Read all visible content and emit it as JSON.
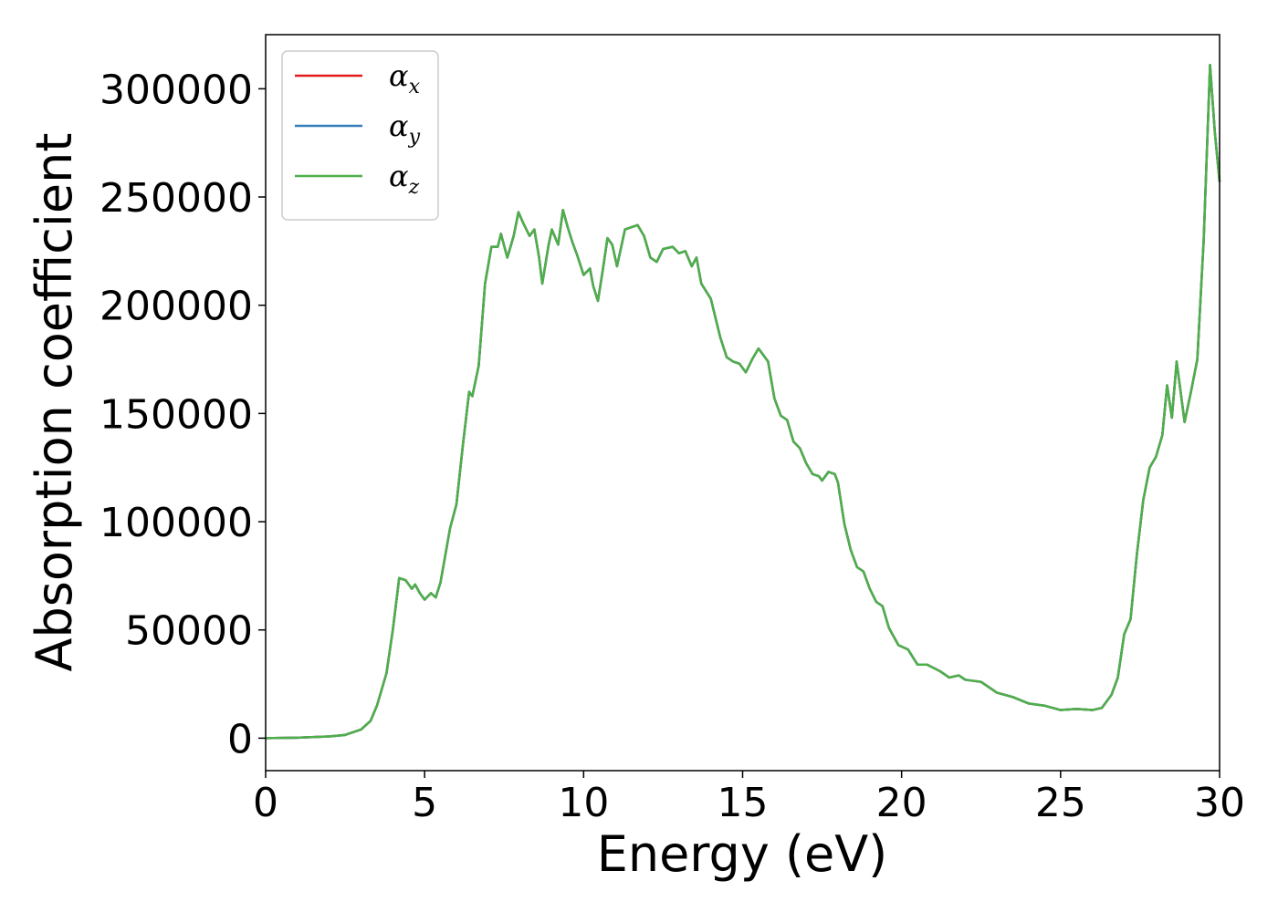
{
  "chart_data": {
    "type": "line",
    "xlabel": "Energy (eV)",
    "ylabel": "Absorption coefficient",
    "xlim": [
      0,
      30
    ],
    "ylim": [
      -15000,
      325000
    ],
    "xticks": [
      0,
      5,
      10,
      15,
      20,
      25,
      30
    ],
    "yticks": [
      0,
      50000,
      100000,
      150000,
      200000,
      250000,
      300000
    ],
    "grid": false,
    "legend": "upper left",
    "x": [
      0,
      1,
      2,
      2.5,
      3.0,
      3.3,
      3.5,
      3.8,
      4.0,
      4.2,
      4.4,
      4.6,
      4.7,
      4.85,
      5.0,
      5.2,
      5.35,
      5.5,
      5.8,
      6.0,
      6.2,
      6.4,
      6.5,
      6.7,
      6.9,
      7.1,
      7.3,
      7.4,
      7.6,
      7.8,
      7.95,
      8.1,
      8.3,
      8.45,
      8.6,
      8.7,
      8.9,
      9.0,
      9.2,
      9.35,
      9.5,
      9.65,
      9.8,
      10.0,
      10.2,
      10.3,
      10.45,
      10.6,
      10.75,
      10.9,
      11.05,
      11.3,
      11.5,
      11.7,
      11.9,
      12.1,
      12.3,
      12.5,
      12.8,
      13.0,
      13.2,
      13.4,
      13.55,
      13.7,
      14.0,
      14.3,
      14.5,
      14.7,
      14.9,
      15.1,
      15.3,
      15.5,
      15.8,
      16.0,
      16.2,
      16.4,
      16.6,
      16.8,
      17.0,
      17.2,
      17.4,
      17.5,
      17.7,
      17.9,
      18.0,
      18.2,
      18.4,
      18.6,
      18.8,
      19.0,
      19.2,
      19.4,
      19.6,
      19.9,
      20.2,
      20.5,
      20.8,
      21.2,
      21.5,
      21.8,
      22.0,
      22.5,
      23.0,
      23.5,
      24.0,
      24.5,
      25.0,
      25.5,
      26.0,
      26.3,
      26.6,
      26.8,
      27.0,
      27.2,
      27.4,
      27.6,
      27.8,
      28.0,
      28.2,
      28.35,
      28.5,
      28.65,
      28.9,
      29.1,
      29.3,
      29.5,
      29.7,
      29.85,
      30.0
    ],
    "series": [
      {
        "name": "αx",
        "color": "#e41a1c",
        "values": [
          0,
          200,
          800,
          1500,
          4000,
          8000,
          15000,
          30000,
          50000,
          74000,
          73000,
          69000,
          71000,
          67000,
          64000,
          67000,
          65000,
          72000,
          97000,
          108000,
          135000,
          160000,
          158000,
          172000,
          210000,
          227000,
          227000,
          233000,
          222000,
          232000,
          243000,
          238000,
          232000,
          235000,
          222000,
          210000,
          228000,
          235000,
          228000,
          244000,
          236000,
          229000,
          223000,
          214000,
          217000,
          209000,
          202000,
          216000,
          231000,
          228000,
          218000,
          235000,
          236000,
          237000,
          232000,
          222000,
          220000,
          226000,
          227000,
          224000,
          225000,
          218000,
          222000,
          210000,
          203000,
          185000,
          176000,
          174000,
          173000,
          169000,
          175000,
          180000,
          174000,
          157000,
          149000,
          147000,
          137000,
          134000,
          127000,
          122000,
          121000,
          119000,
          123000,
          122000,
          118000,
          99000,
          87000,
          79000,
          77000,
          69000,
          63000,
          61000,
          51000,
          43000,
          41000,
          34000,
          34000,
          31000,
          28000,
          29000,
          27000,
          26000,
          21000,
          19000,
          16000,
          15000,
          13000,
          13500,
          13000,
          14000,
          20000,
          28000,
          48000,
          55000,
          85000,
          110000,
          125000,
          130000,
          140000,
          163000,
          148000,
          174000,
          146000,
          160000,
          175000,
          230000,
          311000,
          280000,
          257000
        ]
      },
      {
        "name": "αy",
        "color": "#377eb8",
        "values": [
          0,
          200,
          800,
          1500,
          4000,
          8000,
          15000,
          30000,
          50000,
          74000,
          73000,
          69000,
          71000,
          67000,
          64000,
          67000,
          65000,
          72000,
          97000,
          108000,
          135000,
          160000,
          158000,
          172000,
          210000,
          227000,
          227000,
          233000,
          222000,
          232000,
          243000,
          238000,
          232000,
          235000,
          222000,
          210000,
          228000,
          235000,
          228000,
          244000,
          236000,
          229000,
          223000,
          214000,
          217000,
          209000,
          202000,
          216000,
          231000,
          228000,
          218000,
          235000,
          236000,
          237000,
          232000,
          222000,
          220000,
          226000,
          227000,
          224000,
          225000,
          218000,
          222000,
          210000,
          203000,
          185000,
          176000,
          174000,
          173000,
          169000,
          175000,
          180000,
          174000,
          157000,
          149000,
          147000,
          137000,
          134000,
          127000,
          122000,
          121000,
          119000,
          123000,
          122000,
          118000,
          99000,
          87000,
          79000,
          77000,
          69000,
          63000,
          61000,
          51000,
          43000,
          41000,
          34000,
          34000,
          31000,
          28000,
          29000,
          27000,
          26000,
          21000,
          19000,
          16000,
          15000,
          13000,
          13500,
          13000,
          14000,
          20000,
          28000,
          48000,
          55000,
          85000,
          110000,
          125000,
          130000,
          140000,
          163000,
          148000,
          174000,
          146000,
          160000,
          175000,
          230000,
          311000,
          280000,
          257000
        ]
      },
      {
        "name": "αz",
        "color": "#4daf4a",
        "values": [
          0,
          200,
          800,
          1500,
          4000,
          8000,
          15000,
          30000,
          50000,
          74000,
          73000,
          69000,
          71000,
          67000,
          64000,
          67000,
          65000,
          72000,
          97000,
          108000,
          135000,
          160000,
          158000,
          172000,
          210000,
          227000,
          227000,
          233000,
          222000,
          232000,
          243000,
          238000,
          232000,
          235000,
          222000,
          210000,
          228000,
          235000,
          228000,
          244000,
          236000,
          229000,
          223000,
          214000,
          217000,
          209000,
          202000,
          216000,
          231000,
          228000,
          218000,
          235000,
          236000,
          237000,
          232000,
          222000,
          220000,
          226000,
          227000,
          224000,
          225000,
          218000,
          222000,
          210000,
          203000,
          185000,
          176000,
          174000,
          173000,
          169000,
          175000,
          180000,
          174000,
          157000,
          149000,
          147000,
          137000,
          134000,
          127000,
          122000,
          121000,
          119000,
          123000,
          122000,
          118000,
          99000,
          87000,
          79000,
          77000,
          69000,
          63000,
          61000,
          51000,
          43000,
          41000,
          34000,
          34000,
          31000,
          28000,
          29000,
          27000,
          26000,
          21000,
          19000,
          16000,
          15000,
          13000,
          13500,
          13000,
          14000,
          20000,
          28000,
          48000,
          55000,
          85000,
          110000,
          125000,
          130000,
          140000,
          163000,
          148000,
          174000,
          146000,
          160000,
          175000,
          230000,
          311000,
          280000,
          257000
        ]
      }
    ]
  }
}
